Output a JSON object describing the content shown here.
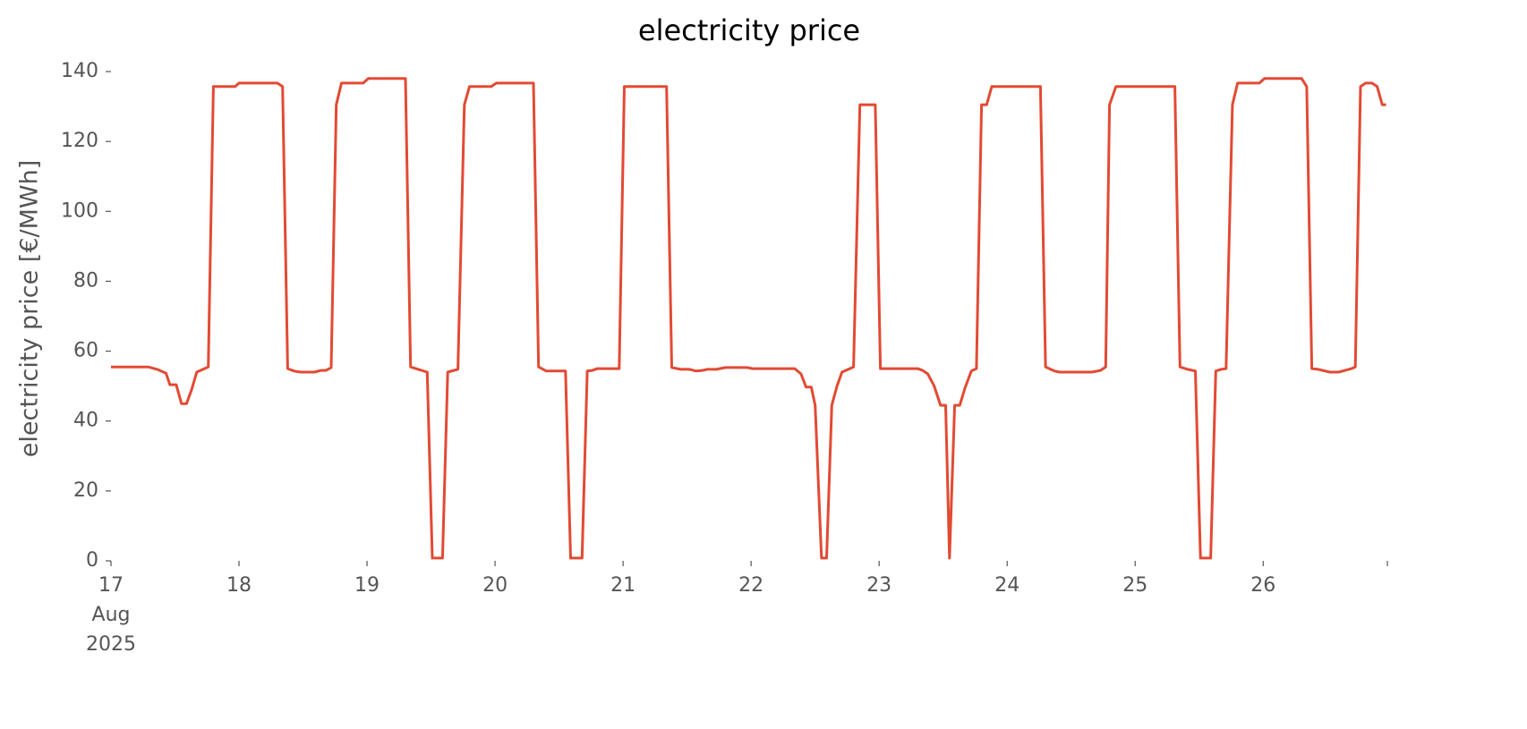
{
  "chart_data": {
    "type": "line",
    "title": "electricity price",
    "ylabel": "electricity price [€/MWh]",
    "x": [
      17.0,
      17.29,
      17.36,
      17.43,
      17.46,
      17.51,
      17.55,
      17.59,
      17.63,
      17.67,
      17.76,
      17.8,
      17.97,
      18.0,
      18.3,
      18.34,
      18.38,
      18.43,
      18.48,
      18.59,
      18.64,
      18.68,
      18.72,
      18.76,
      18.8,
      18.97,
      19.01,
      19.3,
      19.34,
      19.4,
      19.47,
      19.51,
      19.59,
      19.63,
      19.71,
      19.76,
      19.8,
      19.97,
      20.01,
      20.3,
      20.34,
      20.4,
      20.55,
      20.59,
      20.68,
      20.72,
      20.76,
      20.8,
      20.97,
      21.01,
      21.34,
      21.38,
      21.45,
      21.52,
      21.57,
      21.62,
      21.66,
      21.73,
      21.8,
      21.97,
      22.01,
      22.34,
      22.39,
      22.43,
      22.47,
      22.5,
      22.55,
      22.59,
      22.63,
      22.67,
      22.71,
      22.8,
      22.85,
      22.97,
      23.01,
      23.3,
      23.34,
      23.38,
      23.43,
      23.48,
      23.52,
      23.55,
      23.59,
      23.63,
      23.67,
      23.72,
      23.76,
      23.8,
      23.84,
      23.88,
      24.26,
      24.3,
      24.37,
      24.41,
      24.66,
      24.73,
      24.77,
      24.8,
      24.85,
      25.31,
      25.35,
      25.41,
      25.47,
      25.51,
      25.59,
      25.63,
      25.67,
      25.71,
      25.76,
      25.8,
      25.97,
      26.01,
      26.3,
      26.34,
      26.38,
      26.43,
      26.52,
      26.59,
      26.64,
      26.69,
      26.72,
      26.76,
      26.8,
      26.85,
      26.89,
      26.93,
      26.96
    ],
    "series": [
      {
        "name": "electricity price",
        "color": "#e24a33",
        "values": [
          55.5,
          55.5,
          54.8,
          53.7,
          50.4,
          50.4,
          45,
          45,
          49,
          54,
          55.5,
          135.7,
          135.7,
          136.7,
          136.7,
          135.7,
          55,
          54.3,
          54,
          54,
          54.5,
          54.5,
          55.3,
          130.5,
          136.7,
          136.7,
          138,
          138,
          55.5,
          54.8,
          54,
          0.8,
          0.8,
          54,
          54.8,
          130.5,
          135.7,
          135.7,
          136.7,
          136.7,
          55.5,
          54.3,
          54.3,
          0.8,
          0.8,
          54.3,
          54.5,
          55,
          55,
          135.7,
          135.7,
          55.3,
          54.8,
          54.8,
          54.3,
          54.5,
          54.8,
          54.8,
          55.3,
          55.3,
          55,
          55,
          53.5,
          49.7,
          49.7,
          44.5,
          0.8,
          0.8,
          44.5,
          49.9,
          54,
          55.5,
          130.5,
          130.5,
          55,
          55,
          54.5,
          53.5,
          50,
          44.5,
          44.5,
          0.8,
          44.5,
          44.5,
          49.4,
          54.3,
          55,
          130.5,
          130.5,
          135.7,
          135.7,
          55.5,
          54.3,
          54,
          54,
          54.5,
          55.5,
          130.5,
          135.7,
          135.7,
          55.5,
          54.8,
          54.3,
          0.8,
          0.8,
          54.3,
          54.8,
          55,
          130.5,
          136.7,
          136.7,
          138,
          138,
          135.7,
          55,
          54.8,
          54,
          54,
          54.5,
          55,
          55.5,
          135.7,
          136.7,
          136.7,
          135.7,
          130.5,
          130.5
        ]
      }
    ],
    "xlim": [
      17,
      26.97
    ],
    "xticks": [
      {
        "value": 17,
        "label": "17\nAug\n2025"
      },
      18,
      19,
      20,
      21,
      22,
      23,
      24,
      25,
      26,
      {
        "value": 26.97,
        "label": null
      }
    ],
    "ylim": [
      0,
      140
    ],
    "yticks": [
      0,
      20,
      40,
      60,
      80,
      100,
      120,
      140
    ],
    "grid": false
  }
}
